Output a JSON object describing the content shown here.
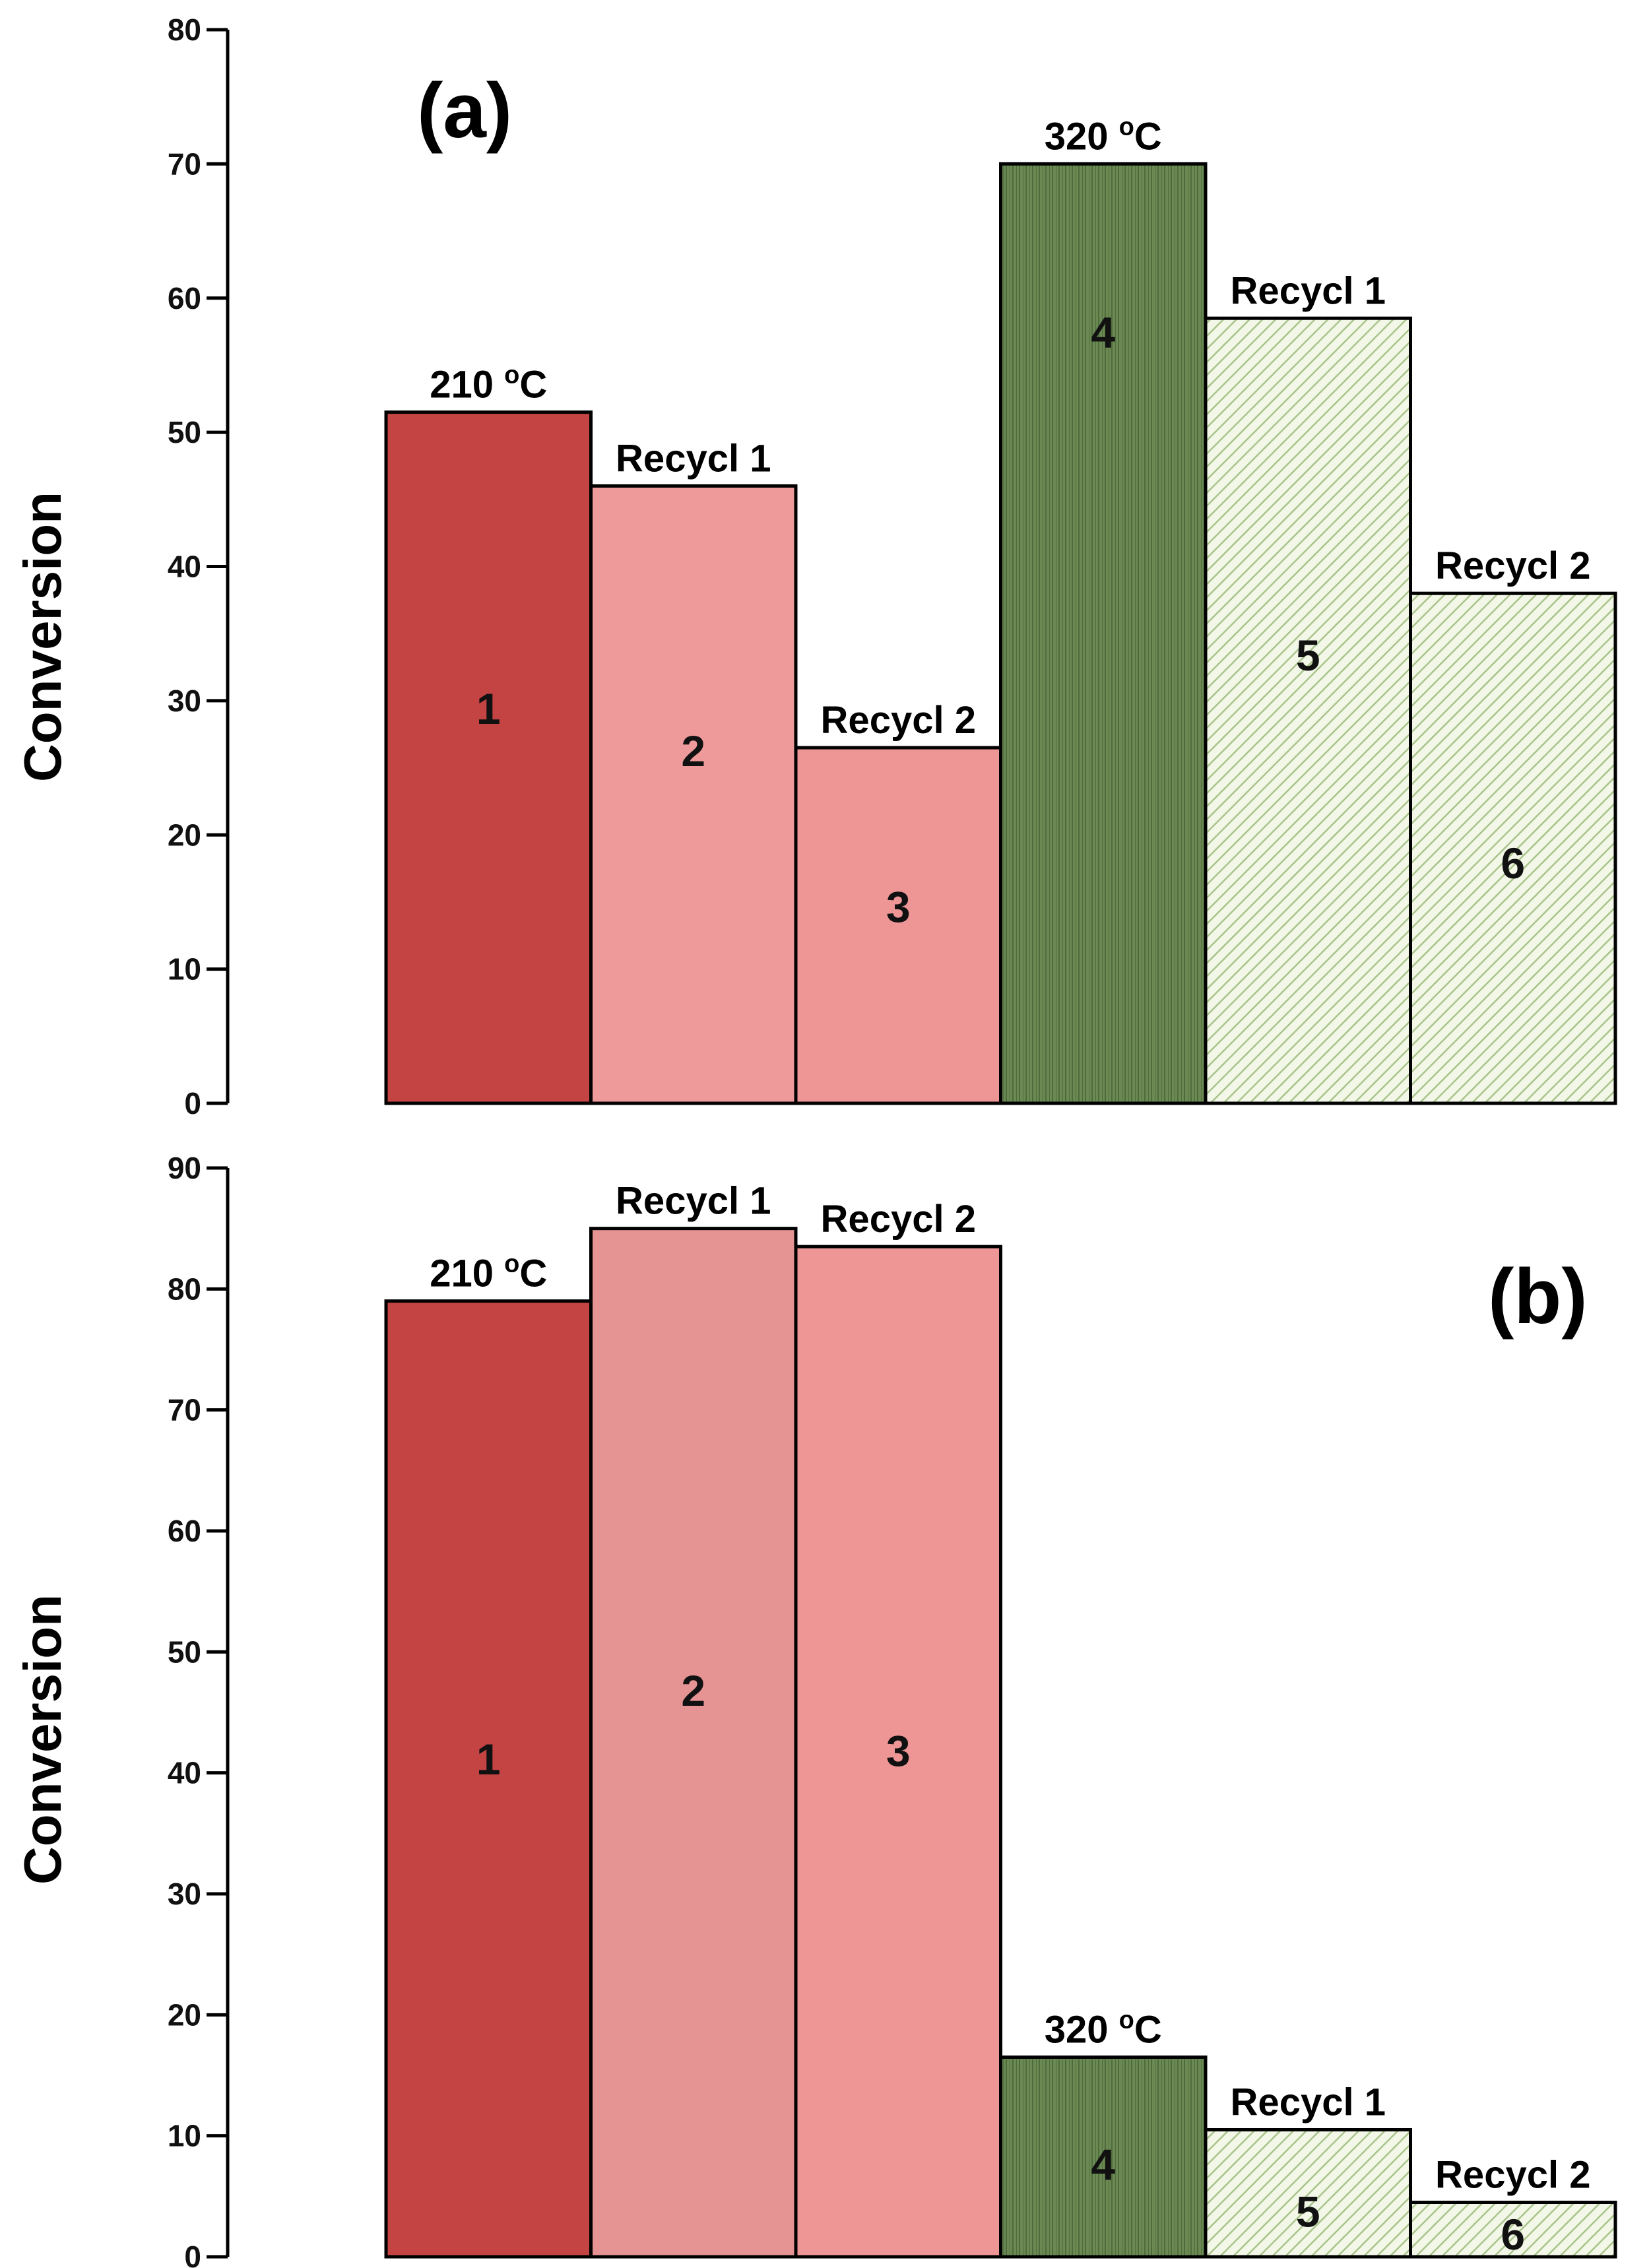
{
  "colors": {
    "bar1": "#c44444",
    "bar2": "#ee9a9a",
    "bar2_b": "#e59393",
    "bar3": "#ee9696",
    "bar4": "#6b8a53",
    "bar4_hatch": "#4f6b3c",
    "bar56_bg": "#f2f7e8",
    "bar56_hatch": "#a9c48a"
  },
  "chart_data": [
    {
      "type": "bar",
      "panel_label": "(a)",
      "ylabel": "Conversion",
      "ylim": [
        0,
        80
      ],
      "yticks": [
        "0",
        "10",
        "20",
        "30",
        "40",
        "50",
        "60",
        "70",
        "80"
      ],
      "categories": [
        "1",
        "2",
        "3",
        "4",
        "5",
        "6"
      ],
      "values": [
        51.5,
        46,
        26.5,
        70,
        58.5,
        38
      ],
      "top_labels": [
        {
          "main": "210 ",
          "sup": "o",
          "unit": "C"
        },
        {
          "main": "Recycl 1",
          "sup": "",
          "unit": ""
        },
        {
          "main": "Recycl 2",
          "sup": "",
          "unit": ""
        },
        {
          "main": "320 ",
          "sup": "o",
          "unit": "C"
        },
        {
          "main": "Recycl 1",
          "sup": "",
          "unit": ""
        },
        {
          "main": "Recycl 2",
          "sup": "",
          "unit": ""
        }
      ]
    },
    {
      "type": "bar",
      "panel_label": "(b)",
      "ylabel": "Conversion",
      "ylim": [
        0,
        90
      ],
      "yticks": [
        "0",
        "10",
        "20",
        "30",
        "40",
        "50",
        "60",
        "70",
        "80",
        "90"
      ],
      "categories": [
        "1",
        "2",
        "3",
        "4",
        "5",
        "6"
      ],
      "values": [
        79,
        85,
        83.5,
        16.5,
        10.5,
        4.5
      ],
      "top_labels": [
        {
          "main": "210 ",
          "sup": "o",
          "unit": "C"
        },
        {
          "main": "Recycl 1",
          "sup": "",
          "unit": ""
        },
        {
          "main": "Recycl 2",
          "sup": "",
          "unit": ""
        },
        {
          "main": "320 ",
          "sup": "o",
          "unit": "C"
        },
        {
          "main": "Recycl 1",
          "sup": "",
          "unit": ""
        },
        {
          "main": "Recycl 2",
          "sup": "",
          "unit": ""
        }
      ]
    }
  ]
}
